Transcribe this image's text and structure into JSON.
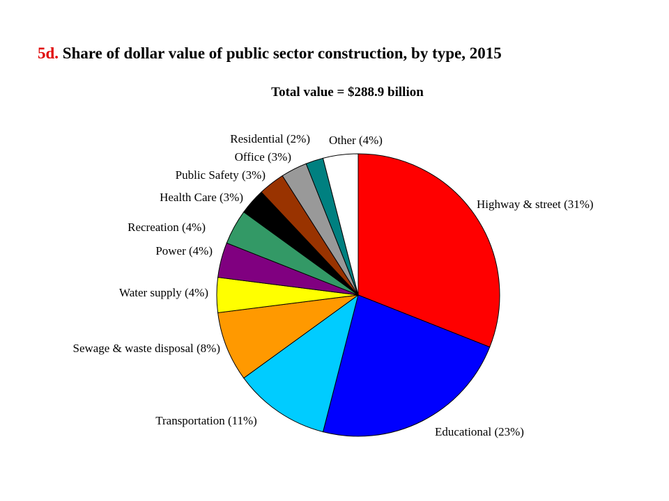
{
  "title": {
    "figure_label": "5d.",
    "text": "Share of dollar value of public sector construction, by type, 2015"
  },
  "subtitle": "Total value = $288.9 billion",
  "chart_data": {
    "type": "pie",
    "title": "5d. Share of dollar value of public sector construction, by type, 2015",
    "subtitle": "Total value = $288.9 billion",
    "start": "12 o'clock, clockwise",
    "slices": [
      {
        "label": "Highway & street (31%)",
        "name": "Highway & street",
        "value": 31,
        "color": "#ff0000"
      },
      {
        "label": "Educational (23%)",
        "name": "Educational",
        "value": 23,
        "color": "#0000ff"
      },
      {
        "label": "Transportation (11%)",
        "name": "Transportation",
        "value": 11,
        "color": "#00ccff"
      },
      {
        "label": "Sewage & waste disposal (8%)",
        "name": "Sewage & waste disposal",
        "value": 8,
        "color": "#ff9900"
      },
      {
        "label": "Water supply (4%)",
        "name": "Water supply",
        "value": 4,
        "color": "#ffff00"
      },
      {
        "label": "Power (4%)",
        "name": "Power",
        "value": 4,
        "color": "#800080"
      },
      {
        "label": "Recreation (4%)",
        "name": "Recreation",
        "value": 4,
        "color": "#339966"
      },
      {
        "label": "Health Care (3%)",
        "name": "Health Care",
        "value": 3,
        "color": "#000000"
      },
      {
        "label": "Public Safety (3%)",
        "name": "Public Safety",
        "value": 3,
        "color": "#993300"
      },
      {
        "label": "Office (3%)",
        "name": "Office",
        "value": 3,
        "color": "#999999"
      },
      {
        "label": "Residential (2%)",
        "name": "Residential",
        "value": 2,
        "color": "#008080"
      },
      {
        "label": "Other (4%)",
        "name": "Other",
        "value": 4,
        "color": "#ffffff"
      }
    ]
  }
}
